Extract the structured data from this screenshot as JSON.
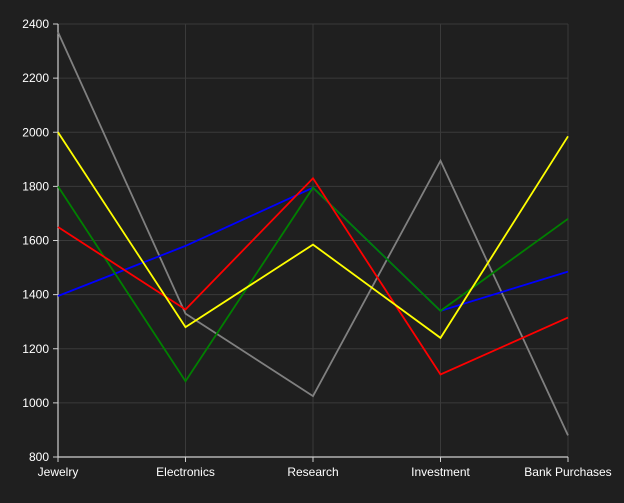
{
  "chart_data": {
    "type": "line",
    "categories": [
      "Jewelry",
      "Electronics",
      "Research",
      "Investment",
      "Bank Purchases"
    ],
    "ylim": [
      800,
      2400
    ],
    "yticks": [
      800,
      1000,
      1200,
      1400,
      1600,
      1800,
      2000,
      2200,
      2400
    ],
    "grid": true,
    "title": "",
    "xlabel": "",
    "ylabel": "",
    "series": [
      {
        "color": "#808080",
        "values": [
          2370,
          1330,
          1025,
          1895,
          880
        ]
      },
      {
        "color": "#0000ff",
        "values": [
          1395,
          1580,
          1795,
          1340,
          1485
        ]
      },
      {
        "color": "#008000",
        "values": [
          1800,
          1080,
          1795,
          1340,
          1680
        ]
      },
      {
        "color": "#ff0000",
        "values": [
          1650,
          1345,
          1830,
          1105,
          1315
        ]
      },
      {
        "color": "#ffff00",
        "values": [
          2000,
          1280,
          1585,
          1240,
          1985
        ]
      }
    ]
  },
  "theme": {
    "background": "#1f1f1f",
    "grid_color": "#3a3a3a",
    "axis_color": "#cfcfcf",
    "text_color": "#ffffff"
  }
}
